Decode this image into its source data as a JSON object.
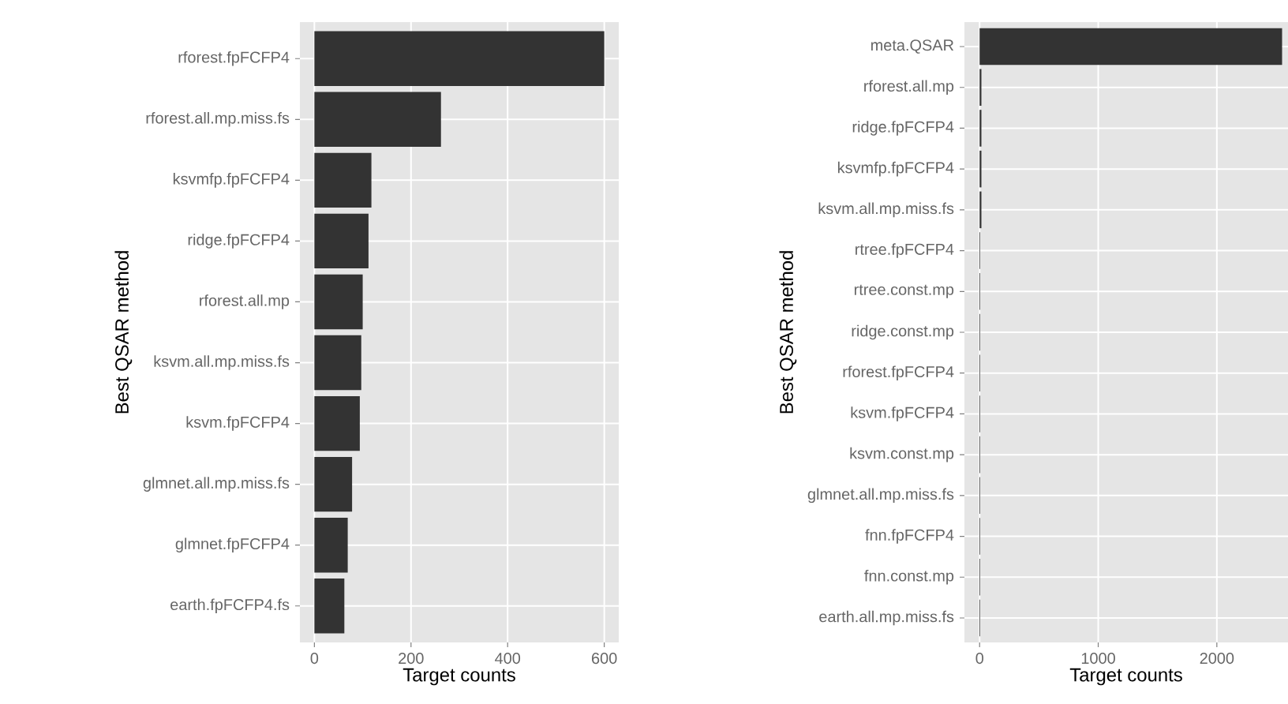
{
  "chart_data": [
    {
      "type": "bar",
      "orientation": "horizontal",
      "xlabel": "Target counts",
      "ylabel": "Best QSAR method",
      "categories": [
        "rforest.fpFCFP4",
        "rforest.all.mp.miss.fs",
        "ksvmfp.fpFCFP4",
        "ridge.fpFCFP4",
        "rforest.all.mp",
        "ksvm.all.mp.miss.fs",
        "ksvm.fpFCFP4",
        "glmnet.all.mp.miss.fs",
        "glmnet.fpFCFP4",
        "earth.fpFCFP4.fs"
      ],
      "values": [
        600,
        262,
        118,
        112,
        100,
        97,
        94,
        78,
        69,
        62
      ],
      "color": "#333333",
      "xlim": [
        -30,
        630
      ],
      "xticks": [
        0,
        200,
        400,
        600
      ],
      "grid": true
    },
    {
      "type": "bar",
      "orientation": "horizontal",
      "xlabel": "Target counts",
      "ylabel": "Best QSAR method",
      "categories": [
        "meta.QSAR",
        "rforest.all.mp",
        "ridge.fpFCFP4",
        "ksvmfp.fpFCFP4",
        "ksvm.all.mp.miss.fs",
        "rtree.fpFCFP4",
        "rtree.const.mp",
        "ridge.const.mp",
        "rforest.fpFCFP4",
        "ksvm.fpFCFP4",
        "ksvm.const.mp",
        "glmnet.all.mp.miss.fs",
        "fnn.fpFCFP4",
        "fnn.const.mp",
        "earth.all.mp.miss.fs"
      ],
      "values": [
        2550,
        15,
        15,
        15,
        15,
        5,
        5,
        5,
        5,
        5,
        5,
        5,
        5,
        5,
        5
      ],
      "color": "#333333",
      "xlim": [
        -128,
        2600
      ],
      "xticks": [
        0,
        1000,
        2000
      ],
      "grid": true
    }
  ]
}
